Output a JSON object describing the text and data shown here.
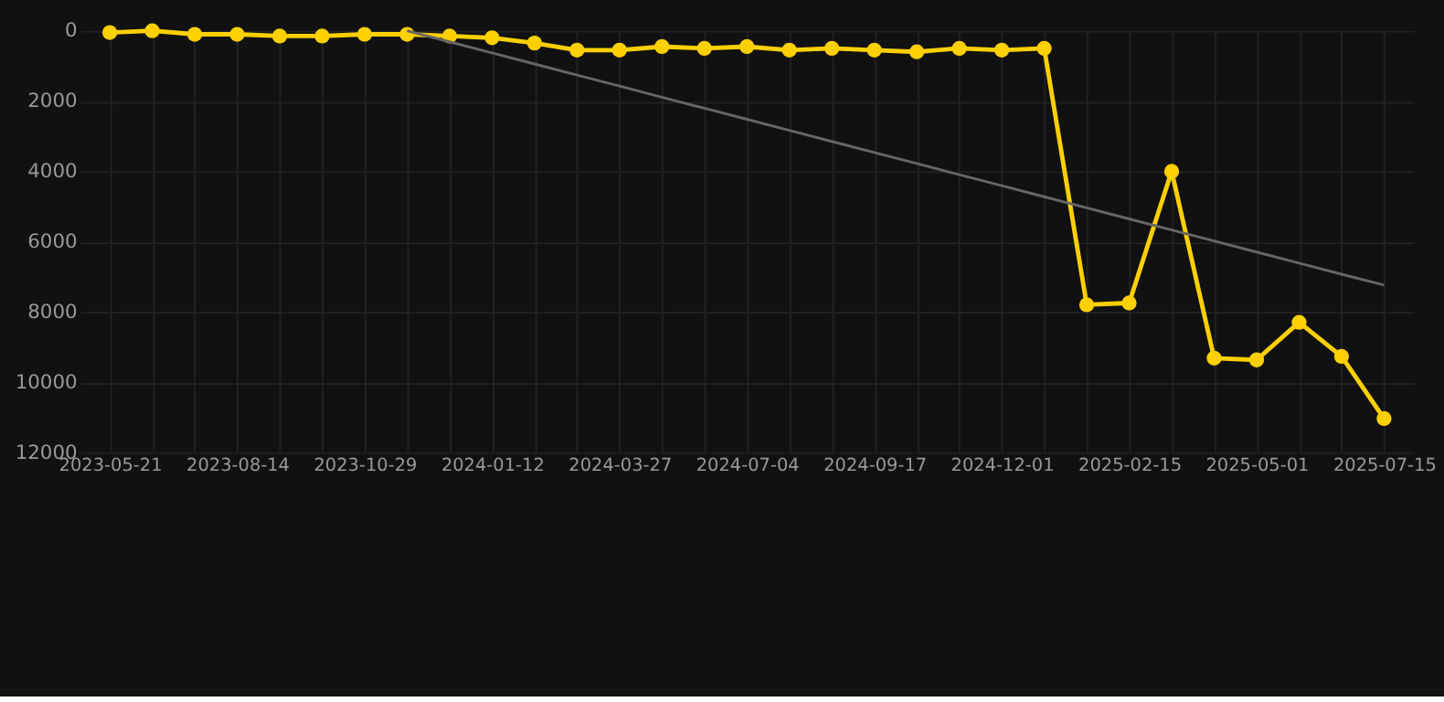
{
  "chart_data": {
    "type": "line",
    "categories": [
      "2023-05-21",
      null,
      null,
      "2023-08-14",
      null,
      null,
      "2023-10-29",
      null,
      null,
      "2024-01-12",
      null,
      null,
      "2024-03-27",
      null,
      null,
      "2024-07-04",
      null,
      null,
      "2024-09-17",
      null,
      null,
      "2024-12-01",
      null,
      null,
      "2025-02-15",
      null,
      null,
      "2025-05-01",
      null,
      null,
      "2025-07-15"
    ],
    "series": [
      {
        "color": "#ffd000",
        "marker": "circle",
        "values": [
          50,
          0,
          100,
          100,
          150,
          150,
          100,
          100,
          150,
          200,
          350,
          550,
          550,
          450,
          500,
          450,
          550,
          500,
          550,
          600,
          500,
          550,
          500,
          7800,
          7750,
          4000,
          9320,
          9370,
          8300,
          9270,
          11040
        ]
      },
      {
        "color": "#666666",
        "marker": "none",
        "values": [
          null,
          null,
          null,
          null,
          null,
          null,
          null,
          0,
          315,
          630,
          945,
          1260,
          1575,
          1890,
          2205,
          2520,
          2835,
          3150,
          3465,
          3780,
          4095,
          4410,
          4725,
          5040,
          5355,
          5670,
          5985,
          6300,
          6615,
          6930,
          7240
        ]
      }
    ],
    "ylim": [
      12000,
      0
    ],
    "yticks": [
      0,
      2000,
      4000,
      6000,
      8000,
      10000,
      12000
    ],
    "grid": true
  }
}
